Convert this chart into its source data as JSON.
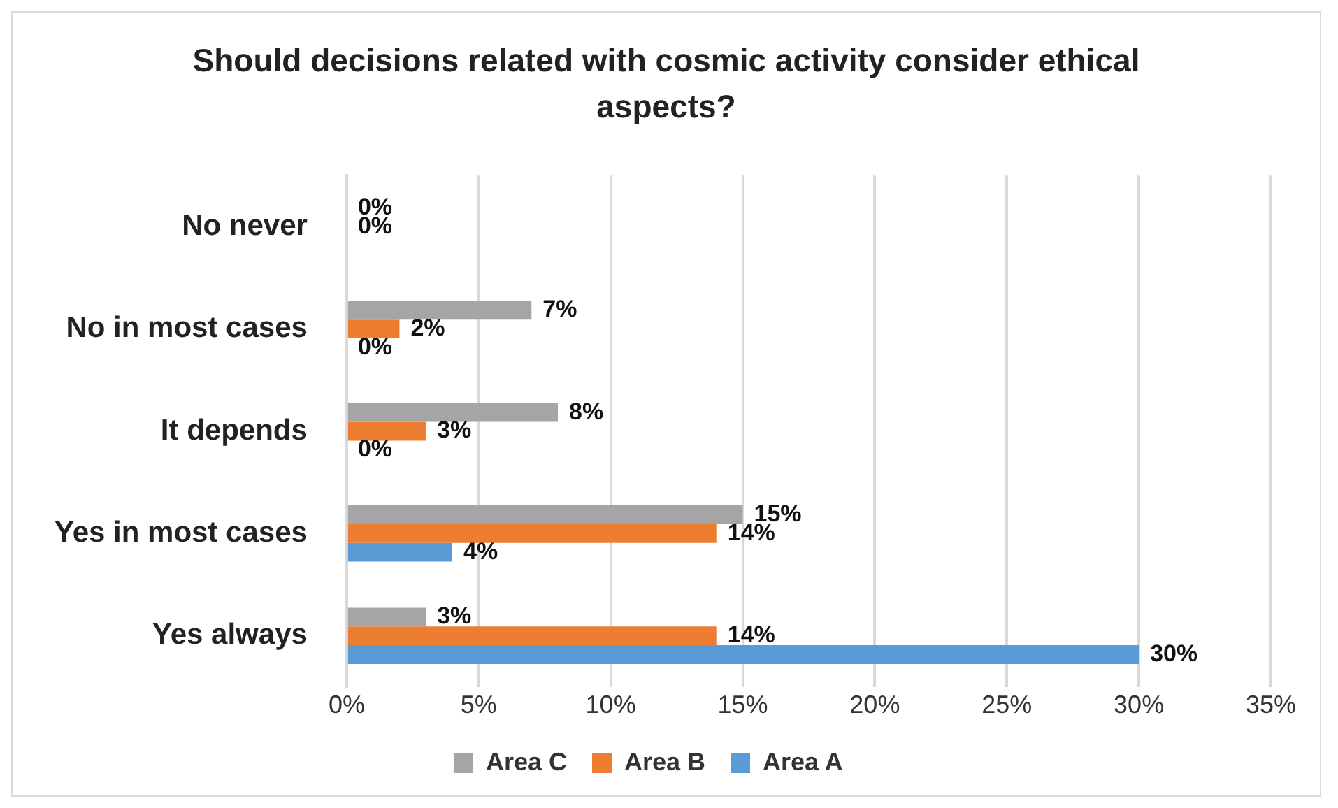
{
  "chart_data": {
    "type": "bar",
    "orientation": "horizontal",
    "title": "Should decisions related with cosmic activity consider ethical aspects?",
    "categories": [
      "No never",
      "No in most cases",
      "It depends",
      "Yes in most cases",
      "Yes always"
    ],
    "series": [
      {
        "name": "Area C",
        "color": "#a5a5a5",
        "values": [
          0,
          7,
          8,
          15,
          3
        ],
        "value_labels": [
          "0%",
          "7%",
          "8%",
          "15%",
          "3%"
        ]
      },
      {
        "name": "Area B",
        "color": "#ed7d31",
        "values": [
          0,
          2,
          3,
          14,
          14
        ],
        "value_labels": [
          "0%",
          "2%",
          "3%",
          "14%",
          "14%"
        ]
      },
      {
        "name": "Area A",
        "color": "#5b9bd5",
        "values": [
          null,
          0,
          0,
          4,
          30
        ],
        "value_labels": [
          null,
          "0%",
          "0%",
          "4%",
          "30%"
        ]
      }
    ],
    "xlim": [
      0,
      35
    ],
    "xticks": [
      {
        "value": 0,
        "label": "0%"
      },
      {
        "value": 5,
        "label": "5%"
      },
      {
        "value": 10,
        "label": "10%"
      },
      {
        "value": 15,
        "label": "15%"
      },
      {
        "value": 20,
        "label": "20%"
      },
      {
        "value": 25,
        "label": "25%"
      },
      {
        "value": 30,
        "label": "30%"
      },
      {
        "value": 35,
        "label": "35%"
      }
    ],
    "grid": "x",
    "legend": "bottom"
  }
}
